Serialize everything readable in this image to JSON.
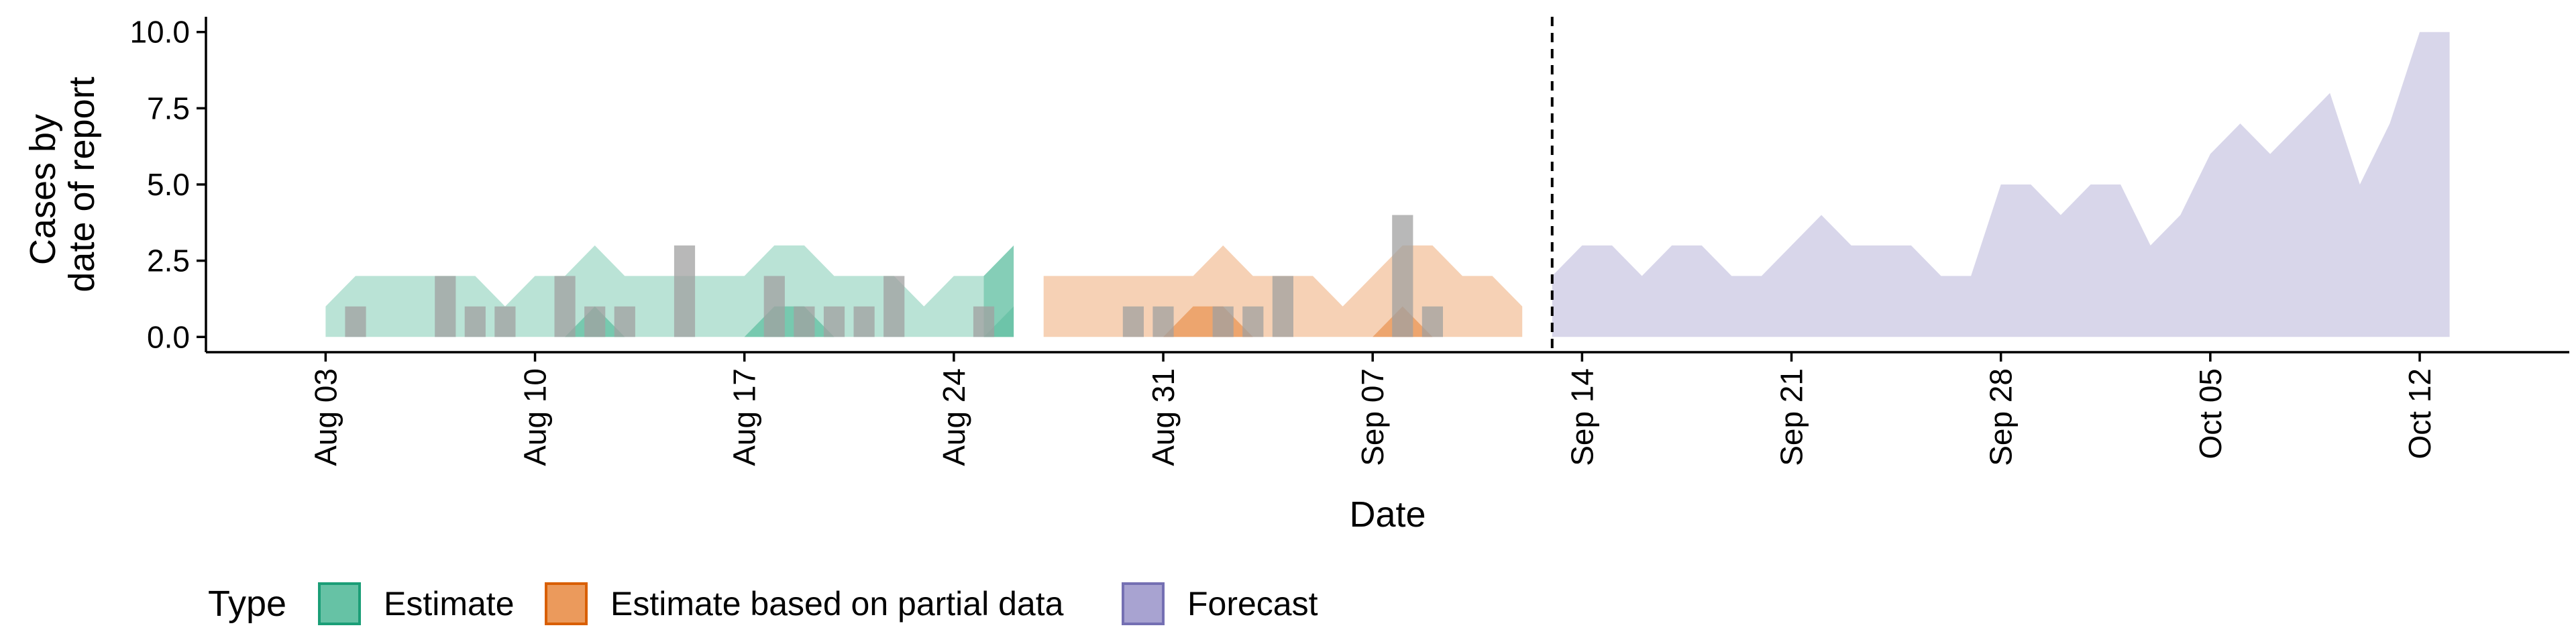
{
  "chart_data": {
    "type": "area",
    "title": "",
    "xlabel": "Date",
    "ylabel_lines": [
      "Cases by",
      "date of report"
    ],
    "x_type": "date",
    "xlim": [
      "2020-07-30",
      "2020-10-17"
    ],
    "ylim": [
      -0.5,
      10.5
    ],
    "x_ticks": [
      {
        "date": "2020-08-03",
        "label": "Aug 03"
      },
      {
        "date": "2020-08-10",
        "label": "Aug 10"
      },
      {
        "date": "2020-08-17",
        "label": "Aug 17"
      },
      {
        "date": "2020-08-24",
        "label": "Aug 24"
      },
      {
        "date": "2020-08-31",
        "label": "Aug 31"
      },
      {
        "date": "2020-09-07",
        "label": "Sep 07"
      },
      {
        "date": "2020-09-14",
        "label": "Sep 14"
      },
      {
        "date": "2020-09-21",
        "label": "Sep 21"
      },
      {
        "date": "2020-09-28",
        "label": "Sep 28"
      },
      {
        "date": "2020-10-05",
        "label": "Oct 05"
      },
      {
        "date": "2020-10-12",
        "label": "Oct 12"
      }
    ],
    "y_ticks": [
      {
        "value": 0,
        "label": "0.0"
      },
      {
        "value": 2.5,
        "label": "2.5"
      },
      {
        "value": 5,
        "label": "5.0"
      },
      {
        "value": 7.5,
        "label": "7.5"
      },
      {
        "value": 10,
        "label": "10.0"
      }
    ],
    "grid": false,
    "legend_placement": "bottom",
    "legend_title": "Type",
    "legend": [
      {
        "label": "Estimate",
        "fill": "#66c2a5",
        "stroke": "#1b9e77"
      },
      {
        "label": "Estimate based on partial data",
        "fill": "#eb9a5c",
        "stroke": "#d95f02"
      },
      {
        "label": "Forecast",
        "fill": "#a8a3d1",
        "stroke": "#7570b3"
      }
    ],
    "vline": {
      "date": "2020-09-13",
      "style": "dashed"
    },
    "bar_color": "#a0a0a0",
    "bars": [
      {
        "date": "2020-08-04",
        "value": 1
      },
      {
        "date": "2020-08-07",
        "value": 2
      },
      {
        "date": "2020-08-08",
        "value": 1
      },
      {
        "date": "2020-08-09",
        "value": 1
      },
      {
        "date": "2020-08-11",
        "value": 2
      },
      {
        "date": "2020-08-12",
        "value": 1
      },
      {
        "date": "2020-08-13",
        "value": 1
      },
      {
        "date": "2020-08-15",
        "value": 3
      },
      {
        "date": "2020-08-18",
        "value": 2
      },
      {
        "date": "2020-08-19",
        "value": 1
      },
      {
        "date": "2020-08-20",
        "value": 1
      },
      {
        "date": "2020-08-21",
        "value": 1
      },
      {
        "date": "2020-08-22",
        "value": 2
      },
      {
        "date": "2020-08-25",
        "value": 1
      },
      {
        "date": "2020-08-30",
        "value": 1
      },
      {
        "date": "2020-08-31",
        "value": 1
      },
      {
        "date": "2020-09-02",
        "value": 1
      },
      {
        "date": "2020-09-03",
        "value": 1
      },
      {
        "date": "2020-09-04",
        "value": 2
      },
      {
        "date": "2020-09-08",
        "value": 4
      },
      {
        "date": "2020-09-09",
        "value": 1
      }
    ],
    "series": [
      {
        "type": "Estimate",
        "segments": [
          {
            "x": [
              "2020-08-03",
              "2020-08-04",
              "2020-08-05",
              "2020-08-06",
              "2020-08-07",
              "2020-08-08",
              "2020-08-09",
              "2020-08-10",
              "2020-08-11",
              "2020-08-12",
              "2020-08-13",
              "2020-08-14",
              "2020-08-15",
              "2020-08-16",
              "2020-08-17",
              "2020-08-18",
              "2020-08-19",
              "2020-08-20",
              "2020-08-21",
              "2020-08-22",
              "2020-08-23",
              "2020-08-24",
              "2020-08-25"
            ],
            "lower": [
              0,
              0,
              0,
              0,
              0,
              0,
              0,
              0,
              0,
              0,
              0,
              0,
              0,
              0,
              0,
              0,
              0,
              0,
              0,
              0,
              0,
              0,
              0
            ],
            "upper": [
              1,
              2,
              2,
              2,
              2,
              2,
              1,
              2,
              2,
              3,
              2,
              2,
              2,
              2,
              2,
              3,
              3,
              2,
              2,
              2,
              1,
              2,
              2
            ]
          },
          {
            "x": [
              "2020-08-25",
              "2020-08-26"
            ],
            "lower": [
              0,
              0
            ],
            "upper": [
              2,
              3
            ]
          },
          {
            "x": [
              "2020-08-11",
              "2020-08-12",
              "2020-08-13"
            ],
            "lower": [
              0,
              0,
              0
            ],
            "upper": [
              0,
              1,
              0
            ]
          },
          {
            "x": [
              "2020-08-17",
              "2020-08-18",
              "2020-08-19",
              "2020-08-20"
            ],
            "lower": [
              0,
              0,
              0,
              0
            ],
            "upper": [
              0,
              1,
              1,
              0
            ]
          },
          {
            "x": [
              "2020-08-25",
              "2020-08-26"
            ],
            "lower": [
              0,
              0
            ],
            "upper": [
              0,
              1
            ]
          }
        ]
      },
      {
        "type": "Estimate based on partial data",
        "segments": [
          {
            "x": [
              "2020-08-27",
              "2020-08-28",
              "2020-08-29",
              "2020-08-30",
              "2020-08-31",
              "2020-09-01",
              "2020-09-02",
              "2020-09-03",
              "2020-09-04",
              "2020-09-05",
              "2020-09-06",
              "2020-09-07",
              "2020-09-08",
              "2020-09-09",
              "2020-09-10",
              "2020-09-11",
              "2020-09-12"
            ],
            "lower": [
              0,
              0,
              0,
              0,
              0,
              0,
              0,
              0,
              0,
              0,
              0,
              0,
              0,
              0,
              0,
              0,
              0
            ],
            "upper": [
              2,
              2,
              2,
              2,
              2,
              2,
              3,
              2,
              2,
              2,
              1,
              2,
              3,
              3,
              2,
              2,
              1
            ]
          },
          {
            "x": [
              "2020-08-31",
              "2020-09-01",
              "2020-09-02",
              "2020-09-03"
            ],
            "lower": [
              0,
              0,
              0,
              0
            ],
            "upper": [
              0,
              1,
              1,
              0
            ]
          },
          {
            "x": [
              "2020-09-07",
              "2020-09-08",
              "2020-09-09"
            ],
            "lower": [
              0,
              0,
              0
            ],
            "upper": [
              0,
              1,
              0
            ]
          }
        ]
      },
      {
        "type": "Forecast",
        "segments": [
          {
            "x": [
              "2020-09-13",
              "2020-09-14",
              "2020-09-15",
              "2020-09-16",
              "2020-09-17",
              "2020-09-18",
              "2020-09-19",
              "2020-09-20",
              "2020-09-21",
              "2020-09-22",
              "2020-09-23",
              "2020-09-24",
              "2020-09-25",
              "2020-09-26",
              "2020-09-27",
              "2020-09-28",
              "2020-09-29",
              "2020-09-30",
              "2020-10-01",
              "2020-10-02",
              "2020-10-03",
              "2020-10-04",
              "2020-10-05",
              "2020-10-06",
              "2020-10-07",
              "2020-10-08",
              "2020-10-09",
              "2020-10-10",
              "2020-10-11",
              "2020-10-12",
              "2020-10-13"
            ],
            "lower": [
              0,
              0,
              0,
              0,
              0,
              0,
              0,
              0,
              0,
              0,
              0,
              0,
              0,
              0,
              0,
              0,
              0,
              0,
              0,
              0,
              0,
              0,
              0,
              0,
              0,
              0,
              0,
              0,
              0,
              0,
              0
            ],
            "upper": [
              2,
              3,
              3,
              2,
              3,
              3,
              2,
              2,
              3,
              4,
              3,
              3,
              3,
              2,
              2,
              5,
              5,
              4,
              5,
              5,
              3,
              4,
              6,
              7,
              6,
              7,
              8,
              5,
              7,
              10,
              10
            ]
          }
        ]
      }
    ]
  }
}
